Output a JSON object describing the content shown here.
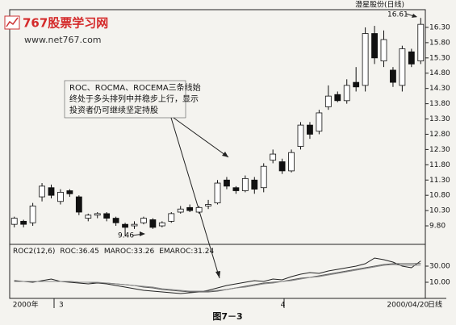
{
  "watermark": {
    "logo": "767股票学习网",
    "url": "www.net767.com"
  },
  "caption": "图7－3",
  "chart_data": [
    {
      "type": "candlestick",
      "title": "澄星股份(日线)",
      "categories": [
        "2000年",
        null,
        null,
        null,
        null,
        "3",
        null,
        null,
        null,
        null,
        null,
        null,
        null,
        null,
        null,
        null,
        null,
        null,
        null,
        null,
        null,
        null,
        null,
        null,
        null,
        null,
        null,
        null,
        null,
        "4",
        null,
        null,
        null,
        null,
        null,
        null,
        null,
        null,
        null,
        null,
        null,
        null,
        null,
        null,
        "2000/04/20"
      ],
      "x_label": "日线",
      "open": [
        9.85,
        9.95,
        9.9,
        10.75,
        11.05,
        10.6,
        10.95,
        10.75,
        10.05,
        10.15,
        10.2,
        10.05,
        9.85,
        9.8,
        9.9,
        10.0,
        9.8,
        9.95,
        10.25,
        10.4,
        10.25,
        10.45,
        10.55,
        11.3,
        11.05,
        10.95,
        11.3,
        11.05,
        11.95,
        11.9,
        11.6,
        12.4,
        13.1,
        12.9,
        13.7,
        14.1,
        13.9,
        14.5,
        14.4,
        16.1,
        15.2,
        14.9,
        14.4,
        15.5,
        15.2
      ],
      "high": [
        10.1,
        10.0,
        10.55,
        11.2,
        11.15,
        11.0,
        11.0,
        10.8,
        10.2,
        10.25,
        10.25,
        10.1,
        9.9,
        9.95,
        10.1,
        10.05,
        9.95,
        10.25,
        10.45,
        10.5,
        10.45,
        10.65,
        11.3,
        11.4,
        11.1,
        11.45,
        11.4,
        11.85,
        12.3,
        12.0,
        12.3,
        13.2,
        13.2,
        13.6,
        14.4,
        14.2,
        14.6,
        15.0,
        16.3,
        16.35,
        16.2,
        15.0,
        15.7,
        15.6,
        16.61
      ],
      "low": [
        9.75,
        9.75,
        9.8,
        10.6,
        10.7,
        10.5,
        10.75,
        10.15,
        9.95,
        10.05,
        9.95,
        9.8,
        9.46,
        9.7,
        9.85,
        9.7,
        9.75,
        9.9,
        10.2,
        10.25,
        10.2,
        10.35,
        10.5,
        11.0,
        10.85,
        10.9,
        10.85,
        10.9,
        11.85,
        11.5,
        11.55,
        12.3,
        12.65,
        12.8,
        13.6,
        13.85,
        13.8,
        14.2,
        14.2,
        15.1,
        15.0,
        14.35,
        14.2,
        15.0,
        15.1
      ],
      "close": [
        10.05,
        9.85,
        10.45,
        11.1,
        10.8,
        10.9,
        10.85,
        10.25,
        10.15,
        10.2,
        10.05,
        9.9,
        9.75,
        9.85,
        10.05,
        9.75,
        9.9,
        10.2,
        10.35,
        10.3,
        10.4,
        10.5,
        11.2,
        11.1,
        10.95,
        11.35,
        11.0,
        11.75,
        12.15,
        11.6,
        12.2,
        13.1,
        12.8,
        13.5,
        14.05,
        13.9,
        14.4,
        14.35,
        16.1,
        15.3,
        15.9,
        14.5,
        15.6,
        15.1,
        16.4
      ],
      "up_color": "#ffffff",
      "down_color": "#111111",
      "edge_color": "#111111",
      "ylim": [
        9.22,
        16.88
      ],
      "yticks": [
        {
          "value": 16.3,
          "label": "16.30"
        },
        {
          "value": 15.8,
          "label": "15.80"
        },
        {
          "value": 15.3,
          "label": "15.30"
        },
        {
          "value": 14.8,
          "label": "14.80"
        },
        {
          "value": 14.3,
          "label": "14.30"
        },
        {
          "value": 13.8,
          "label": "13.80"
        },
        {
          "value": 13.3,
          "label": "13.30"
        },
        {
          "value": 12.8,
          "label": "12.80"
        },
        {
          "value": 12.3,
          "label": "12.30"
        },
        {
          "value": 11.8,
          "label": "11.80"
        },
        {
          "value": 11.3,
          "label": "11.30"
        },
        {
          "value": 10.8,
          "label": "10.80"
        },
        {
          "value": 10.3,
          "label": "10.30"
        },
        {
          "value": 9.8,
          "label": "9.80"
        }
      ],
      "annotations": [
        {
          "text": "16.61"
        },
        {
          "text": "9.46"
        },
        {
          "lines": [
            "ROC、ROCMA、ROCEMA三条线始",
            "终处于多头排列中并稳步上行，显示",
            "投资者仍可继续坚定持股"
          ]
        }
      ]
    },
    {
      "type": "line",
      "title": "ROC2(12,6)",
      "series": [
        {
          "name": "ROC:36.45",
          "color": "#222222",
          "values": [
            12,
            11,
            10,
            12,
            14,
            11,
            10,
            9,
            8,
            9,
            8,
            6,
            4,
            2,
            0,
            -1,
            -2,
            -3,
            -4,
            -3,
            -2,
            0,
            3,
            6,
            8,
            10,
            12,
            11,
            14,
            13,
            17,
            20,
            22,
            21,
            24,
            26,
            28,
            30,
            33,
            40,
            38,
            35,
            30,
            28,
            36.45
          ]
        },
        {
          "name": "MAROC:33.26",
          "color": "#555555",
          "values": [
            11,
            11,
            11,
            11,
            11,
            11,
            11,
            10,
            10,
            9,
            9,
            8,
            7,
            6,
            4,
            3,
            1,
            0,
            -1,
            -2,
            -2,
            -2,
            -1,
            1,
            3,
            5,
            7,
            9,
            10,
            11,
            13,
            15,
            16,
            18,
            20,
            22,
            24,
            26,
            28,
            30,
            32,
            33,
            33,
            33,
            33.26
          ]
        },
        {
          "name": "EMAROC:31.24",
          "color": "#888888",
          "values": [
            11,
            11,
            11,
            11,
            11,
            11,
            11,
            10,
            10,
            10,
            9,
            8,
            7,
            6,
            5,
            4,
            2,
            1,
            0,
            -1,
            -1,
            -1,
            0,
            1,
            3,
            4,
            6,
            8,
            9,
            11,
            12,
            14,
            16,
            17,
            19,
            21,
            23,
            25,
            27,
            29,
            31,
            32,
            31,
            31,
            31.24
          ]
        }
      ],
      "ylim": [
        -10,
        55
      ],
      "yticks": [
        {
          "value": 30,
          "label": "30.00"
        },
        {
          "value": 10,
          "label": "10.00"
        }
      ]
    }
  ]
}
